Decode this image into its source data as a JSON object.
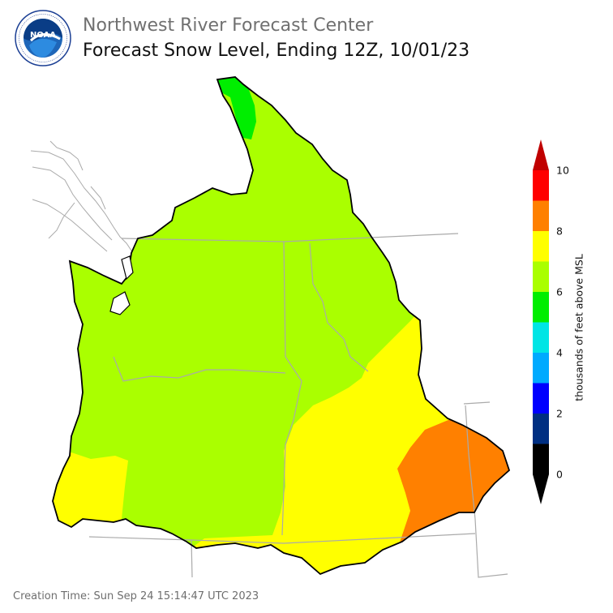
{
  "header": {
    "agency": "Northwest River Forecast Center",
    "product": "Forecast Snow Level, Ending 12Z, 10/01/23",
    "logo_text": "NOAA",
    "logo_ring_text": "NATIONAL OCEANIC AND ATMOSPHERIC ADMINISTRATION · U.S. DEPARTMENT OF COMMERCE"
  },
  "footer": {
    "creation_time": "Creation Time: Sun Sep 24 15:14:47 UTC 2023"
  },
  "legend": {
    "title": "thousands of feet above MSL",
    "ticks": [
      "0",
      "2",
      "4",
      "6",
      "8",
      "10"
    ],
    "tick_values": [
      0,
      2,
      4,
      6,
      8,
      10
    ],
    "bins": [
      {
        "min": 0,
        "max": 1,
        "color": "#000000"
      },
      {
        "min": 1,
        "max": 2,
        "color": "#002f82"
      },
      {
        "min": 2,
        "max": 3,
        "color": "#0000ff"
      },
      {
        "min": 3,
        "max": 4,
        "color": "#00aaff"
      },
      {
        "min": 4,
        "max": 5,
        "color": "#00e5e5"
      },
      {
        "min": 5,
        "max": 6,
        "color": "#00ee00"
      },
      {
        "min": 6,
        "max": 7,
        "color": "#aaff00"
      },
      {
        "min": 7,
        "max": 8,
        "color": "#ffff00"
      },
      {
        "min": 8,
        "max": 9,
        "color": "#ff8000"
      },
      {
        "min": 9,
        "max": 10,
        "color": "#ff0000"
      }
    ],
    "over_color": "#c00000",
    "under_color": "#000000"
  },
  "map": {
    "zone_colors": {
      "light_green": "#aaff00",
      "green": "#00ee00",
      "yellow": "#ffff00",
      "orange": "#ff8000"
    },
    "boundary_color": "#000000",
    "state_line_color": "#aaaaaa"
  }
}
